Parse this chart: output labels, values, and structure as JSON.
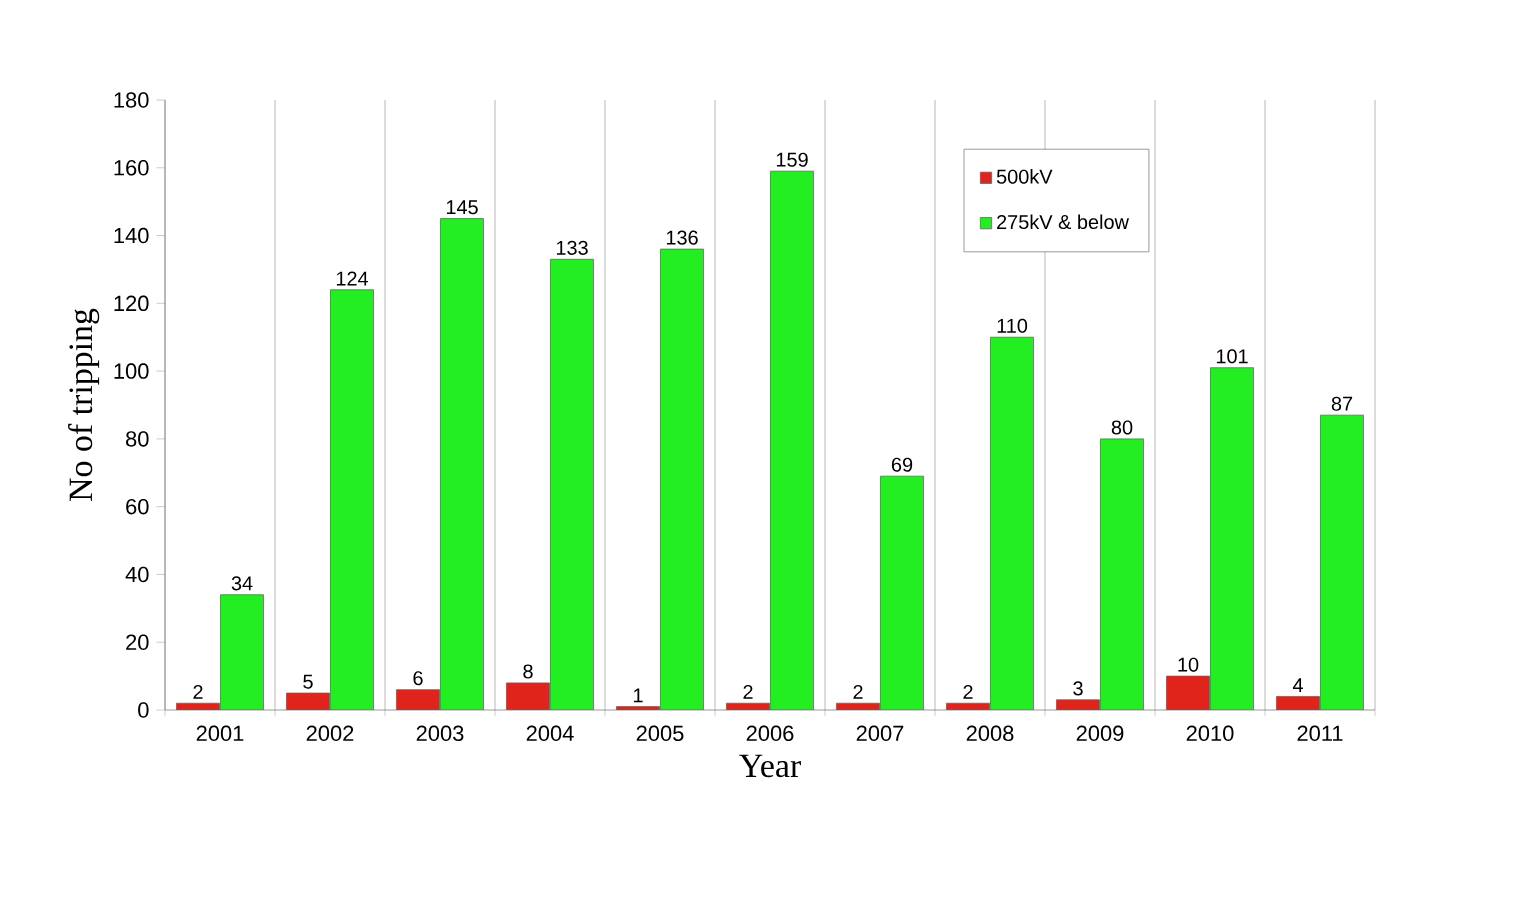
{
  "chart_data": {
    "type": "bar",
    "xlabel": "Year",
    "ylabel": "No of tripping",
    "categories": [
      "2001",
      "2002",
      "2003",
      "2004",
      "2005",
      "2006",
      "2007",
      "2008",
      "2009",
      "2010",
      "2011"
    ],
    "series": [
      {
        "name": "500kV",
        "color": "#e0231b",
        "values": [
          2,
          5,
          6,
          8,
          1,
          2,
          2,
          2,
          3,
          10,
          4
        ]
      },
      {
        "name": "275kV & below",
        "color": "#22ee22",
        "values": [
          34,
          124,
          145,
          133,
          136,
          159,
          69,
          110,
          80,
          101,
          87
        ]
      }
    ],
    "ylim": [
      0,
      180
    ],
    "yticks": [
      0,
      20,
      40,
      60,
      80,
      100,
      120,
      140,
      160,
      180
    ],
    "data_labels": true,
    "grid": "x",
    "legend": "top right"
  }
}
